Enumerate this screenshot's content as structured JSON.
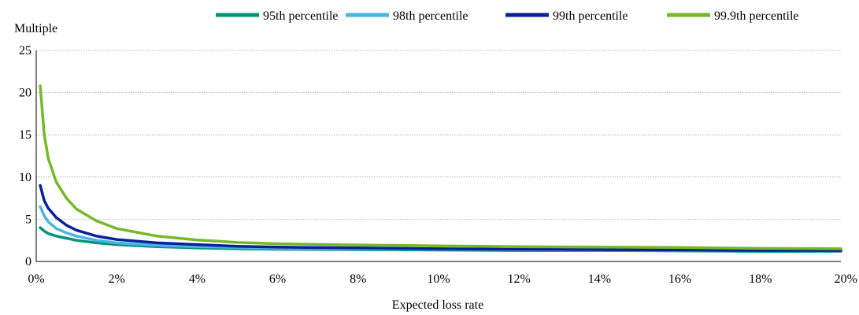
{
  "chart_data": {
    "type": "line",
    "title": "",
    "xlabel": "Expected loss rate",
    "ylabel": "Multiple",
    "xlim": [
      0,
      20
    ],
    "ylim": [
      0,
      25
    ],
    "x_unit": "%",
    "x_ticks": [
      0,
      2,
      4,
      6,
      8,
      10,
      12,
      14,
      16,
      18,
      20
    ],
    "x_tick_labels": [
      "0%",
      "2%",
      "4%",
      "6%",
      "8%",
      "10%",
      "12%",
      "14%",
      "16%",
      "18%",
      "20%"
    ],
    "y_ticks": [
      0,
      5,
      10,
      15,
      20,
      25
    ],
    "y_tick_labels": [
      "0",
      "5",
      "10",
      "15",
      "20",
      "25"
    ],
    "grid": "horizontal",
    "legend_position": "top",
    "x": [
      0.1,
      0.2,
      0.3,
      0.5,
      0.75,
      1,
      1.5,
      2,
      3,
      4,
      5,
      6,
      8,
      10,
      12,
      14,
      16,
      18,
      20
    ],
    "series": [
      {
        "name": "95th percentile",
        "color": "#00957a",
        "values": [
          4.0,
          3.6,
          3.3,
          3.0,
          2.75,
          2.5,
          2.2,
          2.0,
          1.75,
          1.6,
          1.5,
          1.45,
          1.4,
          1.35,
          1.3,
          1.3,
          1.25,
          1.2,
          1.2
        ]
      },
      {
        "name": "98th percentile",
        "color": "#4ab4e6",
        "values": [
          6.5,
          5.4,
          4.7,
          3.9,
          3.4,
          3.0,
          2.5,
          2.2,
          1.9,
          1.75,
          1.65,
          1.55,
          1.5,
          1.45,
          1.4,
          1.35,
          1.3,
          1.3,
          1.25
        ]
      },
      {
        "name": "99th percentile",
        "color": "#0a2196",
        "values": [
          9.0,
          7.2,
          6.3,
          5.2,
          4.3,
          3.7,
          3.0,
          2.6,
          2.2,
          2.0,
          1.8,
          1.7,
          1.6,
          1.5,
          1.45,
          1.4,
          1.35,
          1.3,
          1.3
        ]
      },
      {
        "name": "99.9th percentile",
        "color": "#76b82a",
        "values": [
          20.8,
          15.0,
          12.2,
          9.4,
          7.5,
          6.2,
          4.8,
          3.9,
          3.0,
          2.55,
          2.25,
          2.1,
          1.95,
          1.85,
          1.75,
          1.7,
          1.65,
          1.55,
          1.5
        ]
      }
    ]
  }
}
